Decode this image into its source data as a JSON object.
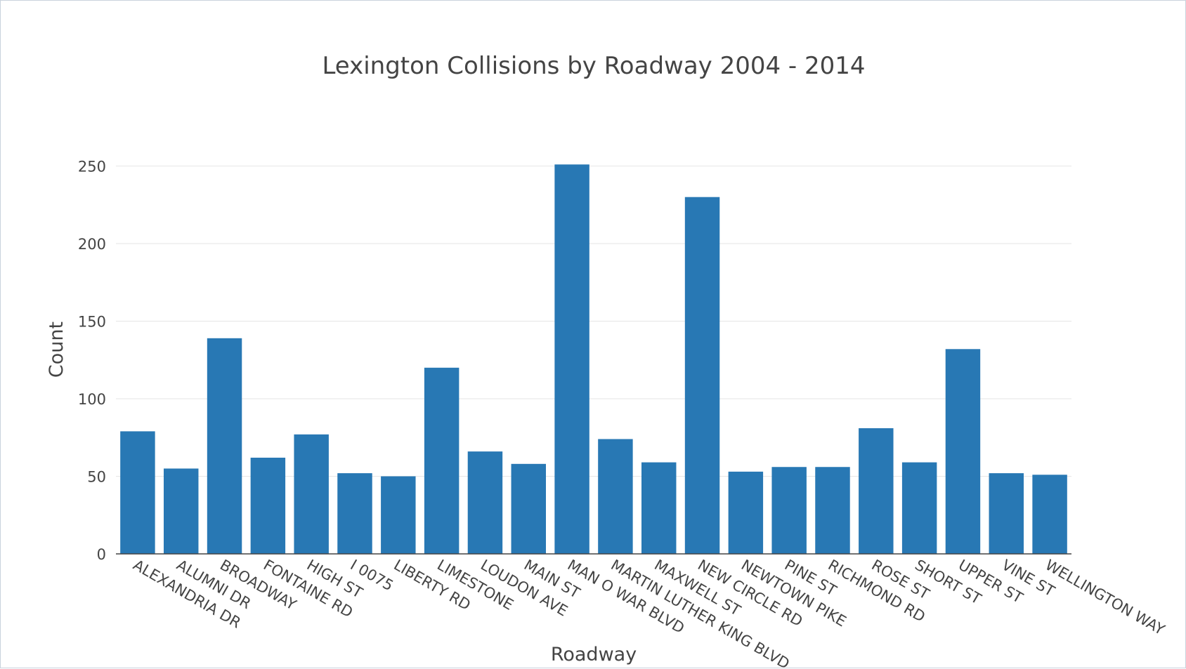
{
  "chart_data": {
    "type": "bar",
    "title": "Lexington Collisions by Roadway 2004 - 2014",
    "xlabel": "Roadway",
    "ylabel": "Count",
    "ylim": [
      0,
      265
    ],
    "yticks": [
      0,
      50,
      100,
      150,
      200,
      250
    ],
    "grid": true,
    "legend": "none",
    "bar_color": "#2878b4",
    "categories": [
      "ALEXANDRIA DR",
      "ALUMNI DR",
      "BROADWAY",
      "FONTAINE RD",
      "HIGH ST",
      "I 0075",
      "LIBERTY RD",
      "LIMESTONE",
      "LOUDON AVE",
      "MAIN ST",
      "MAN O WAR BLVD",
      "MARTIN LUTHER KING BLVD",
      "MAXWELL ST",
      "NEW CIRCLE RD",
      "NEWTOWN PIKE",
      "PINE ST",
      "RICHMOND RD",
      "ROSE ST",
      "SHORT ST",
      "UPPER ST",
      "VINE ST",
      "WELLINGTON WAY"
    ],
    "values": [
      79,
      55,
      139,
      62,
      77,
      52,
      50,
      120,
      66,
      58,
      251,
      74,
      59,
      230,
      53,
      56,
      56,
      81,
      59,
      132,
      52,
      51
    ]
  }
}
